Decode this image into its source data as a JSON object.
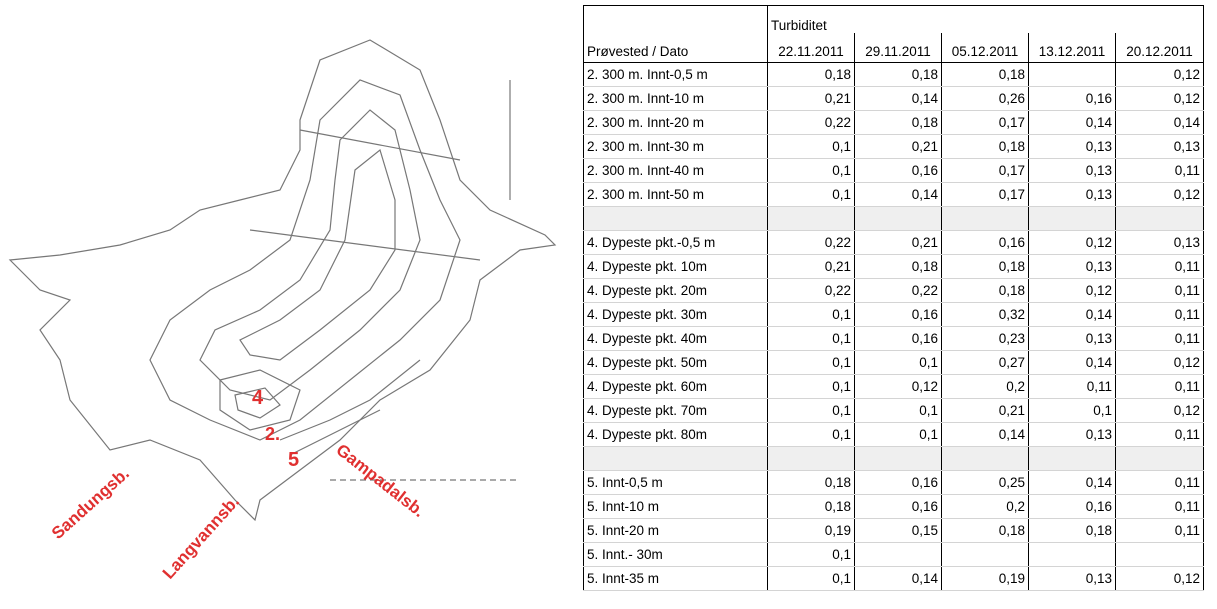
{
  "map": {
    "labels": {
      "site4": "4",
      "site2": "2.",
      "site5": "5",
      "west": "Sandungsb.",
      "south": "Langvannsb.",
      "east": "Gampadalsb."
    }
  },
  "table": {
    "caption": "Turbiditet",
    "corner": "Prøvested / Dato",
    "dates": [
      "22.11.2011",
      "29.11.2011",
      "05.12.2011",
      "13.12.2011",
      "20.12.2011"
    ],
    "groups": [
      {
        "rows": [
          {
            "label": "2. 300 m. Innt-0,5 m",
            "values": [
              "0,18",
              "0,18",
              "0,18",
              null,
              "0,12"
            ]
          },
          {
            "label": "2. 300 m. Innt-10 m",
            "values": [
              "0,21",
              "0,14",
              "0,26",
              "0,16",
              "0,12"
            ]
          },
          {
            "label": "2. 300 m. Innt-20 m",
            "values": [
              "0,22",
              "0,18",
              "0,17",
              "0,14",
              "0,14"
            ]
          },
          {
            "label": "2. 300 m. Innt-30 m",
            "values": [
              "0,1",
              "0,21",
              "0,18",
              "0,13",
              "0,13"
            ]
          },
          {
            "label": "2. 300 m. Innt-40 m",
            "values": [
              "0,1",
              "0,16",
              "0,17",
              "0,13",
              "0,11"
            ]
          },
          {
            "label": "2. 300 m. Innt-50 m",
            "values": [
              "0,1",
              "0,14",
              "0,17",
              "0,13",
              "0,12"
            ]
          }
        ]
      },
      {
        "rows": [
          {
            "label": "4. Dypeste pkt.-0,5 m",
            "values": [
              "0,22",
              "0,21",
              "0,16",
              "0,12",
              "0,13"
            ]
          },
          {
            "label": "4. Dypeste pkt. 10m",
            "values": [
              "0,21",
              "0,18",
              "0,18",
              "0,13",
              "0,11"
            ]
          },
          {
            "label": "4. Dypeste pkt. 20m",
            "values": [
              "0,22",
              "0,22",
              "0,18",
              "0,12",
              "0,11"
            ]
          },
          {
            "label": "4. Dypeste pkt. 30m",
            "values": [
              "0,1",
              "0,16",
              "0,32",
              "0,14",
              "0,11"
            ]
          },
          {
            "label": "4. Dypeste pkt. 40m",
            "values": [
              "0,1",
              "0,16",
              "0,23",
              "0,13",
              "0,11"
            ]
          },
          {
            "label": "4. Dypeste pkt. 50m",
            "values": [
              "0,1",
              "0,1",
              "0,27",
              "0,14",
              "0,12"
            ]
          },
          {
            "label": "4. Dypeste pkt. 60m",
            "values": [
              "0,1",
              "0,12",
              "0,2",
              "0,11",
              "0,11"
            ]
          },
          {
            "label": "4. Dypeste pkt. 70m",
            "values": [
              "0,1",
              "0,1",
              "0,21",
              "0,1",
              "0,12"
            ]
          },
          {
            "label": "4. Dypeste pkt. 80m",
            "values": [
              "0,1",
              "0,1",
              "0,14",
              "0,13",
              "0,11"
            ]
          }
        ]
      },
      {
        "rows": [
          {
            "label": "5. Innt-0,5 m",
            "values": [
              "0,18",
              "0,16",
              "0,25",
              "0,14",
              "0,11"
            ]
          },
          {
            "label": "5. Innt-10 m",
            "values": [
              "0,18",
              "0,16",
              "0,2",
              "0,16",
              "0,11"
            ]
          },
          {
            "label": "5. Innt-20 m",
            "values": [
              "0,19",
              "0,15",
              "0,18",
              "0,18",
              "0,11"
            ]
          },
          {
            "label": "5. Innt.- 30m",
            "values": [
              "0,1",
              null,
              null,
              null,
              null
            ]
          },
          {
            "label": "5. Innt-35 m",
            "values": [
              "0,1",
              "0,14",
              "0,19",
              "0,13",
              "0,12"
            ]
          }
        ]
      }
    ]
  }
}
